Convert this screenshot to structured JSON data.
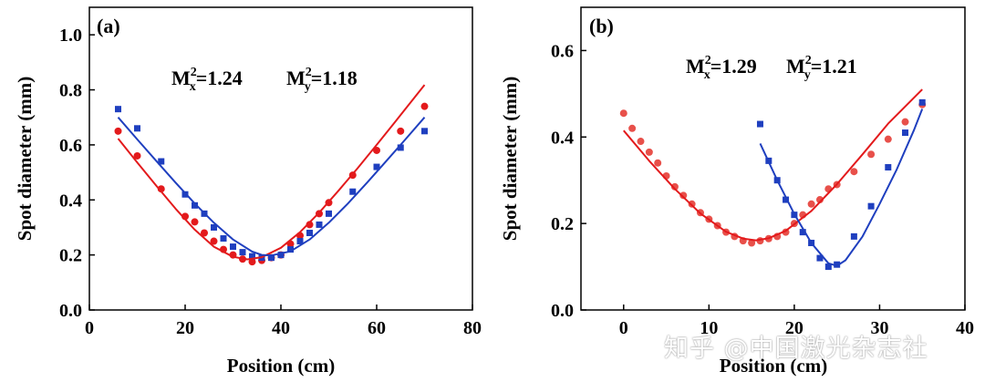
{
  "chart_data": [
    {
      "type": "scatter",
      "panel_label": "(a)",
      "xlabel": "Position (cm)",
      "ylabel": "Spot diameter (mm)",
      "xlim": [
        0,
        80
      ],
      "ylim": [
        0,
        1.1
      ],
      "xticks": [
        0,
        20,
        40,
        60,
        80
      ],
      "yticks": [
        0.0,
        0.2,
        0.4,
        0.6,
        0.8,
        1.0
      ],
      "xtick_labels": [
        "0",
        "20",
        "40",
        "60",
        "80"
      ],
      "ytick_labels": [
        "0.0",
        "0.2",
        "0.4",
        "0.6",
        "0.8",
        "1.0"
      ],
      "annotations": {
        "mx_prefix": "M",
        "mx_sup": "2",
        "mx_sub": "x",
        "mx_value": "=1.24",
        "my_prefix": "M",
        "my_sup": "2",
        "my_sub": "y",
        "my_value": "=1.18"
      },
      "series": [
        {
          "color": "#e31a1c",
          "marker": "circle",
          "kind": "points",
          "x": [
            6,
            10,
            15,
            20,
            22,
            24,
            26,
            28,
            30,
            32,
            34,
            36,
            38,
            40,
            42,
            44,
            46,
            48,
            50,
            55,
            60,
            65,
            70
          ],
          "y": [
            0.65,
            0.56,
            0.44,
            0.34,
            0.32,
            0.28,
            0.25,
            0.22,
            0.2,
            0.185,
            0.175,
            0.18,
            0.19,
            0.2,
            0.24,
            0.27,
            0.31,
            0.35,
            0.39,
            0.49,
            0.58,
            0.65,
            0.74
          ]
        },
        {
          "color": "#1f3fbf",
          "marker": "square",
          "kind": "points",
          "x": [
            6,
            10,
            15,
            20,
            22,
            24,
            26,
            28,
            30,
            32,
            34,
            36,
            38,
            40,
            42,
            44,
            46,
            48,
            50,
            55,
            60,
            65,
            70
          ],
          "y": [
            0.73,
            0.66,
            0.54,
            0.42,
            0.38,
            0.35,
            0.3,
            0.26,
            0.23,
            0.21,
            0.195,
            0.19,
            0.19,
            0.2,
            0.22,
            0.25,
            0.28,
            0.31,
            0.35,
            0.43,
            0.52,
            0.59,
            0.65
          ]
        },
        {
          "color": "#e31a1c",
          "kind": "fit",
          "x": [
            6,
            10,
            14,
            18,
            22,
            26,
            30,
            33,
            36,
            40,
            44,
            48,
            52,
            56,
            60,
            64,
            70
          ],
          "y": [
            0.623,
            0.536,
            0.451,
            0.368,
            0.292,
            0.23,
            0.193,
            0.184,
            0.192,
            0.226,
            0.283,
            0.354,
            0.433,
            0.515,
            0.6,
            0.687,
            0.818
          ]
        },
        {
          "color": "#1f3fbf",
          "kind": "fit",
          "x": [
            6,
            10,
            14,
            18,
            22,
            26,
            30,
            34,
            36,
            38,
            42,
            46,
            50,
            54,
            58,
            62,
            66,
            70
          ],
          "y": [
            0.7,
            0.62,
            0.541,
            0.463,
            0.387,
            0.317,
            0.256,
            0.212,
            0.2,
            0.198,
            0.213,
            0.256,
            0.317,
            0.387,
            0.463,
            0.541,
            0.62,
            0.7
          ]
        }
      ]
    },
    {
      "type": "scatter",
      "panel_label": "(b)",
      "xlabel": "Position (cm)",
      "ylabel": "Spot diameter (mm)",
      "xlim": [
        -5,
        40
      ],
      "ylim": [
        0,
        0.7
      ],
      "xticks": [
        0,
        10,
        20,
        30,
        40
      ],
      "yticks": [
        0.0,
        0.2,
        0.4,
        0.6
      ],
      "xtick_labels": [
        "0",
        "10",
        "20",
        "30",
        "40"
      ],
      "ytick_labels": [
        "0.0",
        "0.2",
        "0.4",
        "0.6"
      ],
      "annotations": {
        "mx_prefix": "M",
        "mx_sup": "2",
        "mx_sub": "x",
        "mx_value": "=1.29",
        "my_prefix": "M",
        "my_sup": "2",
        "my_sub": "y",
        "my_value": "=1.21"
      },
      "series": [
        {
          "color": "#e8504a",
          "marker": "circle",
          "kind": "points",
          "x": [
            0,
            1,
            2,
            3,
            4,
            5,
            6,
            7,
            8,
            9,
            10,
            11,
            12,
            13,
            14,
            15,
            16,
            17,
            18,
            19,
            20,
            21,
            22,
            23,
            24,
            25,
            27,
            29,
            31,
            33,
            35
          ],
          "y": [
            0.455,
            0.42,
            0.39,
            0.365,
            0.34,
            0.31,
            0.285,
            0.265,
            0.245,
            0.225,
            0.21,
            0.195,
            0.18,
            0.17,
            0.16,
            0.155,
            0.16,
            0.165,
            0.17,
            0.18,
            0.2,
            0.22,
            0.245,
            0.255,
            0.28,
            0.29,
            0.32,
            0.36,
            0.395,
            0.435,
            0.475
          ]
        },
        {
          "color": "#1f3fbf",
          "marker": "square",
          "kind": "points",
          "x": [
            16,
            17,
            18,
            19,
            20,
            21,
            22,
            23,
            24,
            25,
            27,
            29,
            31,
            33,
            35
          ],
          "y": [
            0.43,
            0.345,
            0.3,
            0.255,
            0.22,
            0.18,
            0.155,
            0.12,
            0.1,
            0.105,
            0.17,
            0.24,
            0.33,
            0.41,
            0.48
          ]
        },
        {
          "color": "#e31a1c",
          "kind": "fit",
          "x": [
            0,
            3,
            6,
            9,
            12,
            14,
            15.5,
            17,
            19,
            22,
            25,
            28,
            31,
            35
          ],
          "y": [
            0.415,
            0.345,
            0.28,
            0.223,
            0.181,
            0.165,
            0.161,
            0.166,
            0.183,
            0.229,
            0.291,
            0.36,
            0.431,
            0.51
          ]
        },
        {
          "color": "#1f3fbf",
          "kind": "fit",
          "x": [
            16,
            18,
            20,
            22,
            24,
            25,
            26,
            28,
            30,
            32,
            34,
            35
          ],
          "y": [
            0.385,
            0.3,
            0.222,
            0.155,
            0.108,
            0.102,
            0.115,
            0.17,
            0.245,
            0.325,
            0.415,
            0.465
          ]
        }
      ]
    }
  ],
  "watermark": "知乎 @中国激光杂志社"
}
